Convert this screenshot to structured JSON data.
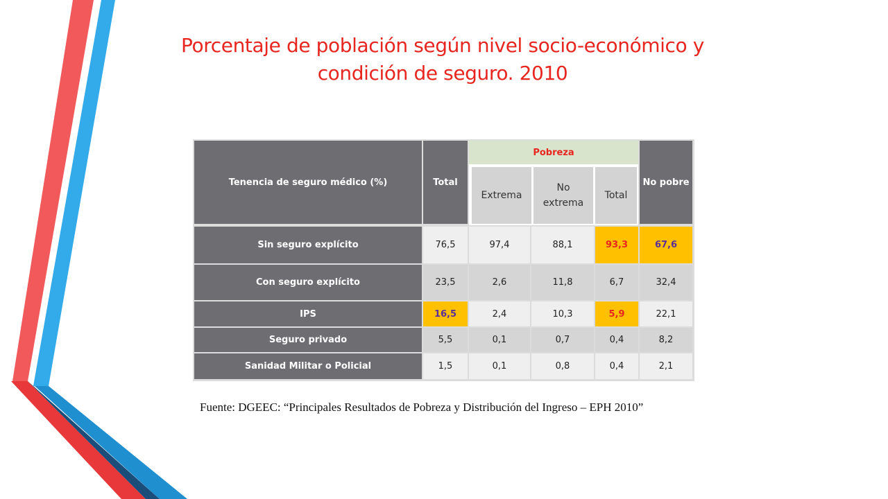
{
  "title": {
    "line1": "Porcentaje de población según nivel socio-económico y",
    "line2": "condición de seguro. 2010"
  },
  "colors": {
    "accent_red": "#e8251f",
    "accent_blue": "#2ea8e6",
    "header_gray": "#6d6d72",
    "highlight": "#ffc000",
    "group_green": "#d8e4cc"
  },
  "table": {
    "row_header": "Tenencia de seguro médico (%)",
    "col_total": "Total",
    "group": "Pobreza",
    "sub_extrema": "Extrema",
    "sub_no_extrema": "No extrema",
    "sub_total": "Total",
    "col_no_pobre": "No pobre",
    "rows": [
      {
        "label": "Sin seguro explícito",
        "values": [
          "76,5",
          "97,4",
          "88,1",
          "93,3",
          "67,6"
        ]
      },
      {
        "label": "Con seguro explícito",
        "values": [
          "23,5",
          "2,6",
          "11,8",
          "6,7",
          "32,4"
        ]
      },
      {
        "label": "IPS",
        "values": [
          "16,5",
          "2,4",
          "10,3",
          "5,9",
          "22,1"
        ]
      },
      {
        "label": "Seguro privado",
        "values": [
          "5,5",
          "0,1",
          "0,7",
          "0,4",
          "8,2"
        ]
      },
      {
        "label": "Sanidad Militar o Policial",
        "values": [
          "1,5",
          "0,1",
          "0,8",
          "0,4",
          "2,1"
        ]
      }
    ]
  },
  "source": "Fuente: DGEEC: “Principales Resultados de Pobreza y Distribución del Ingreso – EPH 2010”"
}
